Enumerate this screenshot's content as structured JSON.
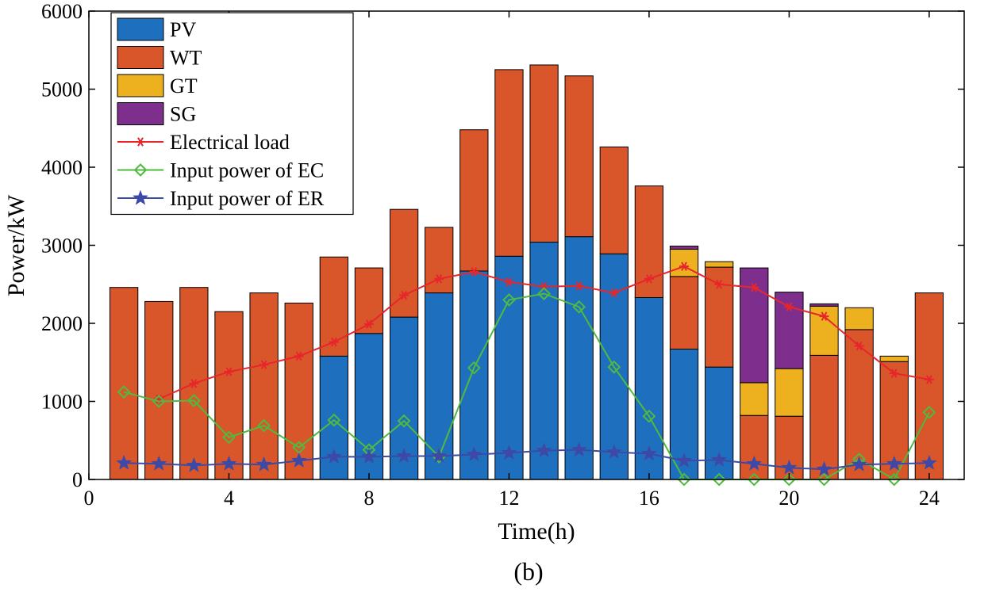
{
  "chart_data": {
    "type": "bar",
    "subtitle": "(b)",
    "xlabel": "Time(h)",
    "ylabel": "Power/kW",
    "xlim": [
      0,
      25
    ],
    "ylim": [
      0,
      6000
    ],
    "xticks": [
      0,
      4,
      8,
      12,
      16,
      20,
      24
    ],
    "yticks": [
      0,
      1000,
      2000,
      3000,
      4000,
      5000,
      6000
    ],
    "grid": false,
    "legend_position": "top-left",
    "x": [
      1,
      2,
      3,
      4,
      5,
      6,
      7,
      8,
      9,
      10,
      11,
      12,
      13,
      14,
      15,
      16,
      17,
      18,
      19,
      20,
      21,
      22,
      23,
      24
    ],
    "stacked_series": [
      {
        "name": "PV",
        "color": "#1f6fbf",
        "values": [
          0,
          0,
          0,
          0,
          0,
          0,
          1580,
          1870,
          2080,
          2390,
          2670,
          2860,
          3040,
          3110,
          2890,
          2330,
          1670,
          1440,
          0,
          0,
          0,
          0,
          0,
          0
        ]
      },
      {
        "name": "WT",
        "color": "#d9552a",
        "values": [
          2460,
          2280,
          2460,
          2150,
          2390,
          2260,
          1270,
          840,
          1380,
          840,
          1810,
          2390,
          2270,
          2060,
          1370,
          1430,
          930,
          1280,
          820,
          810,
          1590,
          1920,
          1510,
          2390
        ]
      },
      {
        "name": "GT",
        "color": "#edb120",
        "values": [
          0,
          0,
          0,
          0,
          0,
          0,
          0,
          0,
          0,
          0,
          0,
          0,
          0,
          0,
          0,
          0,
          350,
          70,
          420,
          610,
          630,
          280,
          70,
          0
        ]
      },
      {
        "name": "SG",
        "color": "#7e2f8e",
        "values": [
          0,
          0,
          0,
          0,
          0,
          0,
          0,
          0,
          0,
          0,
          0,
          0,
          0,
          0,
          0,
          0,
          40,
          0,
          1470,
          980,
          30,
          0,
          0,
          0
        ]
      }
    ],
    "line_series": [
      {
        "name": "Electrical load",
        "color": "#e8252b",
        "marker": "asterisk",
        "values": [
          null,
          1030,
          1230,
          1380,
          1470,
          1580,
          1760,
          1990,
          2360,
          2570,
          2660,
          2530,
          2470,
          2480,
          2390,
          2570,
          2730,
          2500,
          2460,
          2210,
          2090,
          1710,
          1360,
          1280
        ]
      },
      {
        "name": "Input power of EC",
        "color": "#4fba3f",
        "marker": "diamond",
        "values": [
          1120,
          1000,
          1010,
          540,
          690,
          410,
          760,
          380,
          750,
          290,
          1430,
          2300,
          2380,
          2210,
          1440,
          810,
          0,
          0,
          0,
          0,
          0,
          260,
          0,
          860
        ]
      },
      {
        "name": "Input power of ER",
        "color": "#3d49a6",
        "marker": "star",
        "values": [
          210,
          200,
          180,
          200,
          190,
          240,
          290,
          290,
          300,
          300,
          320,
          340,
          370,
          380,
          350,
          330,
          240,
          250,
          200,
          150,
          130,
          190,
          200,
          210
        ]
      }
    ]
  }
}
